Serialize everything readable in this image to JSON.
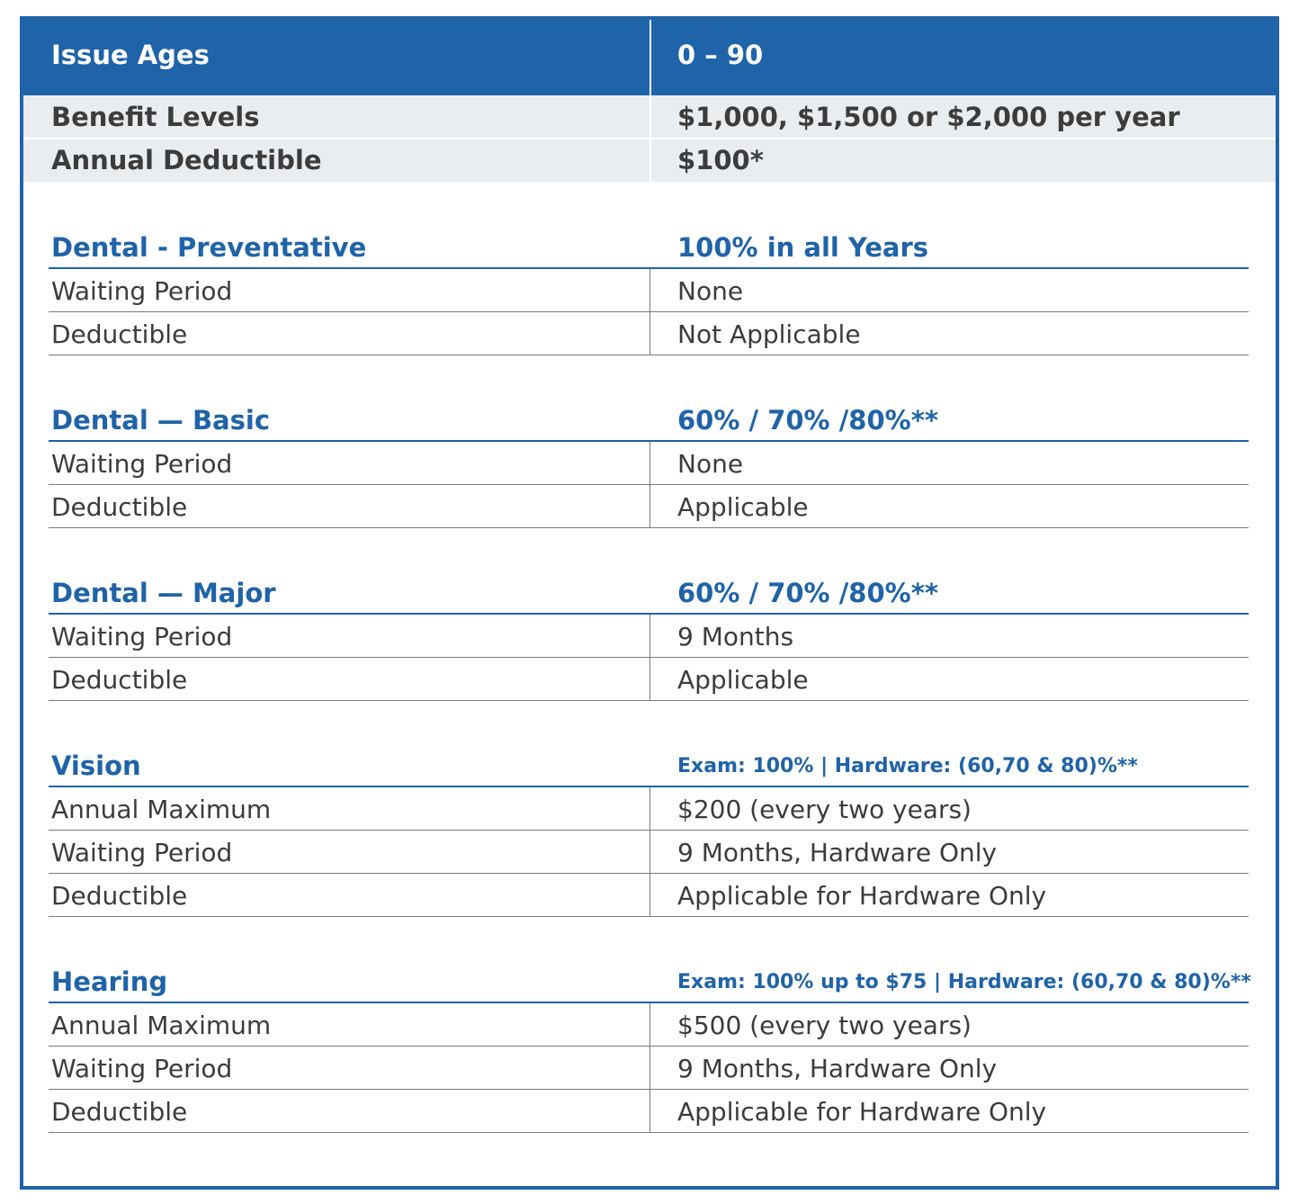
{
  "header": {
    "label": "Issue Ages",
    "value": "0 – 90"
  },
  "summary_rows": [
    {
      "label": "Benefit Levels",
      "value": "$1,000, $1,500 or $2,000 per year"
    },
    {
      "label": "Annual Deductible",
      "value": "$100*"
    }
  ],
  "sections": [
    {
      "title": "Dental - Preventative",
      "value": "100% in all Years",
      "rows": [
        {
          "label": "Waiting Period",
          "value": "None"
        },
        {
          "label": "Deductible",
          "value": "Not Applicable"
        }
      ]
    },
    {
      "title": "Dental — Basic",
      "value": "60% / 70% /80%**",
      "rows": [
        {
          "label": "Waiting Period",
          "value": "None"
        },
        {
          "label": "Deductible",
          "value": "Applicable"
        }
      ]
    },
    {
      "title": "Dental — Major",
      "value": "60% / 70% /80%**",
      "rows": [
        {
          "label": "Waiting Period",
          "value": "9 Months"
        },
        {
          "label": "Deductible",
          "value": "Applicable"
        }
      ]
    },
    {
      "title": "Vision",
      "value": "Exam: 100% | Hardware: (60,70 & 80)%**",
      "rows": [
        {
          "label": "Annual Maximum",
          "value": "$200 (every two years)"
        },
        {
          "label": "Waiting Period",
          "value": "9 Months, Hardware Only"
        },
        {
          "label": "Deductible",
          "value": "Applicable for Hardware Only"
        }
      ]
    },
    {
      "title": "Hearing",
      "value": "Exam: 100% up to $75 | Hardware: (60,70 & 80)%**",
      "rows": [
        {
          "label": "Annual Maximum",
          "value": "$500 (every two years)"
        },
        {
          "label": "Waiting Period",
          "value": "9 Months, Hardware Only"
        },
        {
          "label": "Deductible",
          "value": "Applicable for Hardware Only"
        }
      ]
    }
  ]
}
